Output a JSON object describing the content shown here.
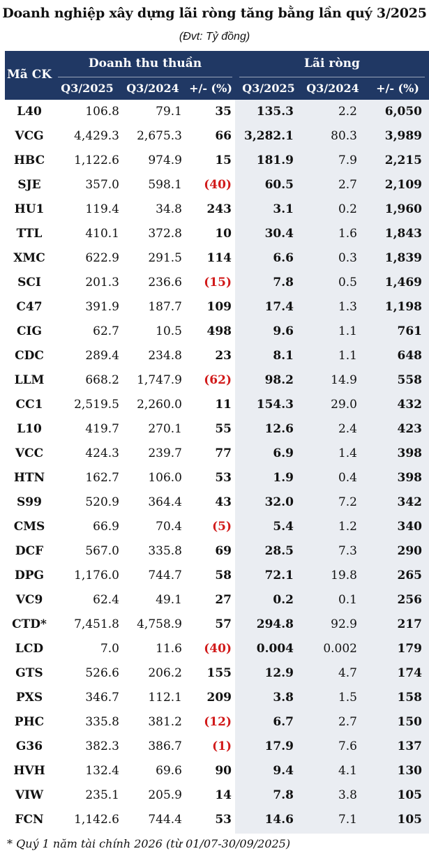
{
  "title": "Doanh nghiệp xây dựng lãi ròng tăng bằng lần quý 3/2025",
  "unit": "(Đvt: Tỷ đồng)",
  "header": {
    "ticker": "Mã CK",
    "revenue_group": "Doanh thu thuần",
    "profit_group": "Lãi ròng",
    "rev_q3_2025": "Q3/2025",
    "rev_q3_2024": "Q3/2024",
    "rev_change": "+/- (%)",
    "pro_q3_2025": "Q3/2025",
    "pro_q3_2024": "Q3/2024",
    "pro_change": "+/- (%)"
  },
  "rows": [
    {
      "ticker": "L40",
      "rev25": "106.8",
      "rev24": "79.1",
      "revchg": "35",
      "neg": false,
      "pro25": "135.3",
      "pro24": "2.2",
      "prochg": "6,050"
    },
    {
      "ticker": "VCG",
      "rev25": "4,429.3",
      "rev24": "2,675.3",
      "revchg": "66",
      "neg": false,
      "pro25": "3,282.1",
      "pro24": "80.3",
      "prochg": "3,989"
    },
    {
      "ticker": "HBC",
      "rev25": "1,122.6",
      "rev24": "974.9",
      "revchg": "15",
      "neg": false,
      "pro25": "181.9",
      "pro24": "7.9",
      "prochg": "2,215"
    },
    {
      "ticker": "SJE",
      "rev25": "357.0",
      "rev24": "598.1",
      "revchg": "(40)",
      "neg": true,
      "pro25": "60.5",
      "pro24": "2.7",
      "prochg": "2,109"
    },
    {
      "ticker": "HU1",
      "rev25": "119.4",
      "rev24": "34.8",
      "revchg": "243",
      "neg": false,
      "pro25": "3.1",
      "pro24": "0.2",
      "prochg": "1,960"
    },
    {
      "ticker": "TTL",
      "rev25": "410.1",
      "rev24": "372.8",
      "revchg": "10",
      "neg": false,
      "pro25": "30.4",
      "pro24": "1.6",
      "prochg": "1,843"
    },
    {
      "ticker": "XMC",
      "rev25": "622.9",
      "rev24": "291.5",
      "revchg": "114",
      "neg": false,
      "pro25": "6.6",
      "pro24": "0.3",
      "prochg": "1,839"
    },
    {
      "ticker": "SCI",
      "rev25": "201.3",
      "rev24": "236.6",
      "revchg": "(15)",
      "neg": true,
      "pro25": "7.8",
      "pro24": "0.5",
      "prochg": "1,469"
    },
    {
      "ticker": "C47",
      "rev25": "391.9",
      "rev24": "187.7",
      "revchg": "109",
      "neg": false,
      "pro25": "17.4",
      "pro24": "1.3",
      "prochg": "1,198"
    },
    {
      "ticker": "CIG",
      "rev25": "62.7",
      "rev24": "10.5",
      "revchg": "498",
      "neg": false,
      "pro25": "9.6",
      "pro24": "1.1",
      "prochg": "761"
    },
    {
      "ticker": "CDC",
      "rev25": "289.4",
      "rev24": "234.8",
      "revchg": "23",
      "neg": false,
      "pro25": "8.1",
      "pro24": "1.1",
      "prochg": "648"
    },
    {
      "ticker": "LLM",
      "rev25": "668.2",
      "rev24": "1,747.9",
      "revchg": "(62)",
      "neg": true,
      "pro25": "98.2",
      "pro24": "14.9",
      "prochg": "558"
    },
    {
      "ticker": "CC1",
      "rev25": "2,519.5",
      "rev24": "2,260.0",
      "revchg": "11",
      "neg": false,
      "pro25": "154.3",
      "pro24": "29.0",
      "prochg": "432"
    },
    {
      "ticker": "L10",
      "rev25": "419.7",
      "rev24": "270.1",
      "revchg": "55",
      "neg": false,
      "pro25": "12.6",
      "pro24": "2.4",
      "prochg": "423"
    },
    {
      "ticker": "VCC",
      "rev25": "424.3",
      "rev24": "239.7",
      "revchg": "77",
      "neg": false,
      "pro25": "6.9",
      "pro24": "1.4",
      "prochg": "398"
    },
    {
      "ticker": "HTN",
      "rev25": "162.7",
      "rev24": "106.0",
      "revchg": "53",
      "neg": false,
      "pro25": "1.9",
      "pro24": "0.4",
      "prochg": "398"
    },
    {
      "ticker": "S99",
      "rev25": "520.9",
      "rev24": "364.4",
      "revchg": "43",
      "neg": false,
      "pro25": "32.0",
      "pro24": "7.2",
      "prochg": "342"
    },
    {
      "ticker": "CMS",
      "rev25": "66.9",
      "rev24": "70.4",
      "revchg": "(5)",
      "neg": true,
      "pro25": "5.4",
      "pro24": "1.2",
      "prochg": "340"
    },
    {
      "ticker": "DCF",
      "rev25": "567.0",
      "rev24": "335.8",
      "revchg": "69",
      "neg": false,
      "pro25": "28.5",
      "pro24": "7.3",
      "prochg": "290"
    },
    {
      "ticker": "DPG",
      "rev25": "1,176.0",
      "rev24": "744.7",
      "revchg": "58",
      "neg": false,
      "pro25": "72.1",
      "pro24": "19.8",
      "prochg": "265"
    },
    {
      "ticker": "VC9",
      "rev25": "62.4",
      "rev24": "49.1",
      "revchg": "27",
      "neg": false,
      "pro25": "0.2",
      "pro24": "0.1",
      "prochg": "256"
    },
    {
      "ticker": "CTD*",
      "rev25": "7,451.8",
      "rev24": "4,758.9",
      "revchg": "57",
      "neg": false,
      "pro25": "294.8",
      "pro24": "92.9",
      "prochg": "217"
    },
    {
      "ticker": "LCD",
      "rev25": "7.0",
      "rev24": "11.6",
      "revchg": "(40)",
      "neg": true,
      "pro25": "0.004",
      "pro24": "0.002",
      "prochg": "179"
    },
    {
      "ticker": "GTS",
      "rev25": "526.6",
      "rev24": "206.2",
      "revchg": "155",
      "neg": false,
      "pro25": "12.9",
      "pro24": "4.7",
      "prochg": "174"
    },
    {
      "ticker": "PXS",
      "rev25": "346.7",
      "rev24": "112.1",
      "revchg": "209",
      "neg": false,
      "pro25": "3.8",
      "pro24": "1.5",
      "prochg": "158"
    },
    {
      "ticker": "PHC",
      "rev25": "335.8",
      "rev24": "381.2",
      "revchg": "(12)",
      "neg": true,
      "pro25": "6.7",
      "pro24": "2.7",
      "prochg": "150"
    },
    {
      "ticker": "G36",
      "rev25": "382.3",
      "rev24": "386.7",
      "revchg": "(1)",
      "neg": true,
      "pro25": "17.9",
      "pro24": "7.6",
      "prochg": "137"
    },
    {
      "ticker": "HVH",
      "rev25": "132.4",
      "rev24": "69.6",
      "revchg": "90",
      "neg": false,
      "pro25": "9.4",
      "pro24": "4.1",
      "prochg": "130"
    },
    {
      "ticker": "VIW",
      "rev25": "235.1",
      "rev24": "205.9",
      "revchg": "14",
      "neg": false,
      "pro25": "7.8",
      "pro24": "3.8",
      "prochg": "105"
    },
    {
      "ticker": "FCN",
      "rev25": "1,142.6",
      "rev24": "744.4",
      "revchg": "53",
      "neg": false,
      "pro25": "14.6",
      "pro24": "7.1",
      "prochg": "105"
    }
  ],
  "footnote": "* Quý 1 năm tài chính 2026 (từ 01/07-30/09/2025)",
  "colors": {
    "header_bg": "#203864",
    "shade_bg": "#eaedf2",
    "negative": "#d11a1a"
  }
}
